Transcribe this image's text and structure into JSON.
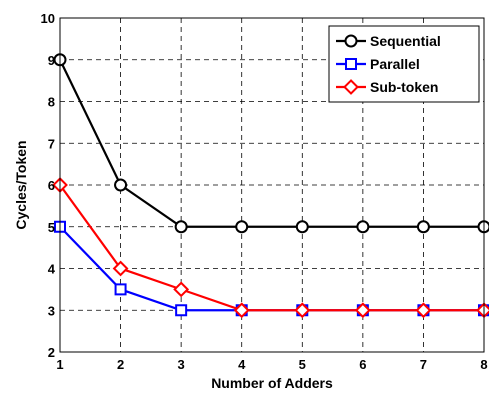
{
  "chart_data": {
    "type": "line",
    "title": "",
    "xlabel": "Number of Adders",
    "ylabel": "Cycles/Token",
    "xlim": [
      1,
      8
    ],
    "ylim": [
      2,
      10
    ],
    "xticks": [
      1,
      2,
      3,
      4,
      5,
      6,
      7,
      8
    ],
    "yticks": [
      2,
      3,
      4,
      5,
      6,
      7,
      8,
      9,
      10
    ],
    "grid": true,
    "legend_position": "top-right",
    "x": [
      1,
      2,
      3,
      4,
      5,
      6,
      7,
      8
    ],
    "series": [
      {
        "name": "Sequential",
        "color": "#000000",
        "marker": "circle",
        "values": [
          9,
          6,
          5,
          5,
          5,
          5,
          5,
          5
        ]
      },
      {
        "name": "Parallel",
        "color": "#0000ff",
        "marker": "square",
        "values": [
          5,
          3.5,
          3,
          3,
          3,
          3,
          3,
          3
        ]
      },
      {
        "name": "Sub-token",
        "color": "#ff0000",
        "marker": "diamond",
        "values": [
          6,
          4,
          3.5,
          3,
          3,
          3,
          3,
          3
        ]
      }
    ]
  }
}
